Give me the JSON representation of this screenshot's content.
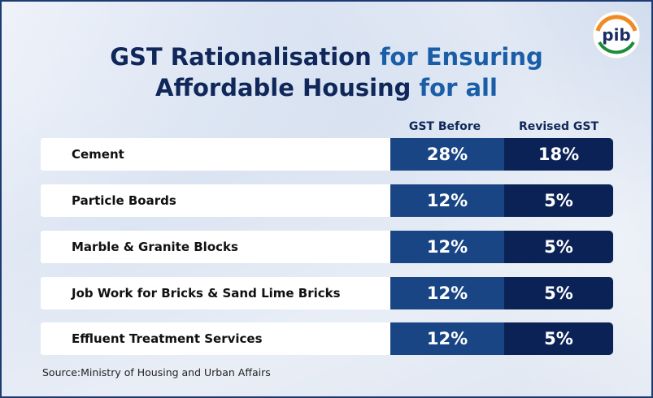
{
  "title": {
    "line1_part1": "GST Rationalisation ",
    "line1_part2": "for Ensuring",
    "line2_part1": "Affordable Housing ",
    "line2_part2": "for all"
  },
  "logo": {
    "text": "pib",
    "icon": "pib-logo-icon"
  },
  "columns": {
    "before": "GST Before",
    "revised": "Revised GST"
  },
  "rows": [
    {
      "item": "Cement",
      "before": "28%",
      "revised": "18%"
    },
    {
      "item": "Particle Boards",
      "before": "12%",
      "revised": "5%"
    },
    {
      "item": "Marble & Granite Blocks",
      "before": "12%",
      "revised": "5%"
    },
    {
      "item": "Job Work for Bricks & Sand Lime Bricks",
      "before": "12%",
      "revised": "5%"
    },
    {
      "item": "Effluent Treatment Services",
      "before": "12%",
      "revised": "5%"
    }
  ],
  "source": "Source:Ministry of Housing and Urban Affairs",
  "colors": {
    "title_dark": "#10275a",
    "title_accent": "#1b5ea8",
    "before_cell": "#1a4585",
    "revised_cell": "#0b2257"
  }
}
